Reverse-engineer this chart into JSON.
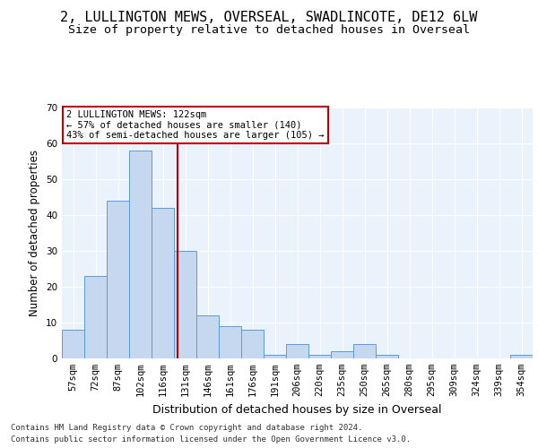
{
  "title1": "2, LULLINGTON MEWS, OVERSEAL, SWADLINCOTE, DE12 6LW",
  "title2": "Size of property relative to detached houses in Overseal",
  "xlabel": "Distribution of detached houses by size in Overseal",
  "ylabel": "Number of detached properties",
  "categories": [
    "57sqm",
    "72sqm",
    "87sqm",
    "102sqm",
    "116sqm",
    "131sqm",
    "146sqm",
    "161sqm",
    "176sqm",
    "191sqm",
    "206sqm",
    "220sqm",
    "235sqm",
    "250sqm",
    "265sqm",
    "280sqm",
    "295sqm",
    "309sqm",
    "324sqm",
    "339sqm",
    "354sqm"
  ],
  "values": [
    8,
    23,
    44,
    58,
    42,
    30,
    12,
    9,
    8,
    1,
    4,
    1,
    2,
    4,
    1,
    0,
    0,
    0,
    0,
    0,
    1
  ],
  "bar_color": "#c5d8f0",
  "bar_edge_color": "#5b9bd5",
  "vline_x": 4.65,
  "vline_color": "#c00000",
  "annotation_text": "2 LULLINGTON MEWS: 122sqm\n← 57% of detached houses are smaller (140)\n43% of semi-detached houses are larger (105) →",
  "annotation_box_color": "#ffffff",
  "annotation_box_edge": "#c00000",
  "ylim": [
    0,
    70
  ],
  "yticks": [
    0,
    10,
    20,
    30,
    40,
    50,
    60,
    70
  ],
  "footer1": "Contains HM Land Registry data © Crown copyright and database right 2024.",
  "footer2": "Contains public sector information licensed under the Open Government Licence v3.0.",
  "bg_color": "#eaf2fb",
  "fig_bg": "#ffffff",
  "title1_fontsize": 11,
  "title2_fontsize": 9.5,
  "xlabel_fontsize": 9,
  "ylabel_fontsize": 8.5,
  "tick_fontsize": 7.5,
  "footer_fontsize": 6.5,
  "annotation_fontsize": 7.5
}
